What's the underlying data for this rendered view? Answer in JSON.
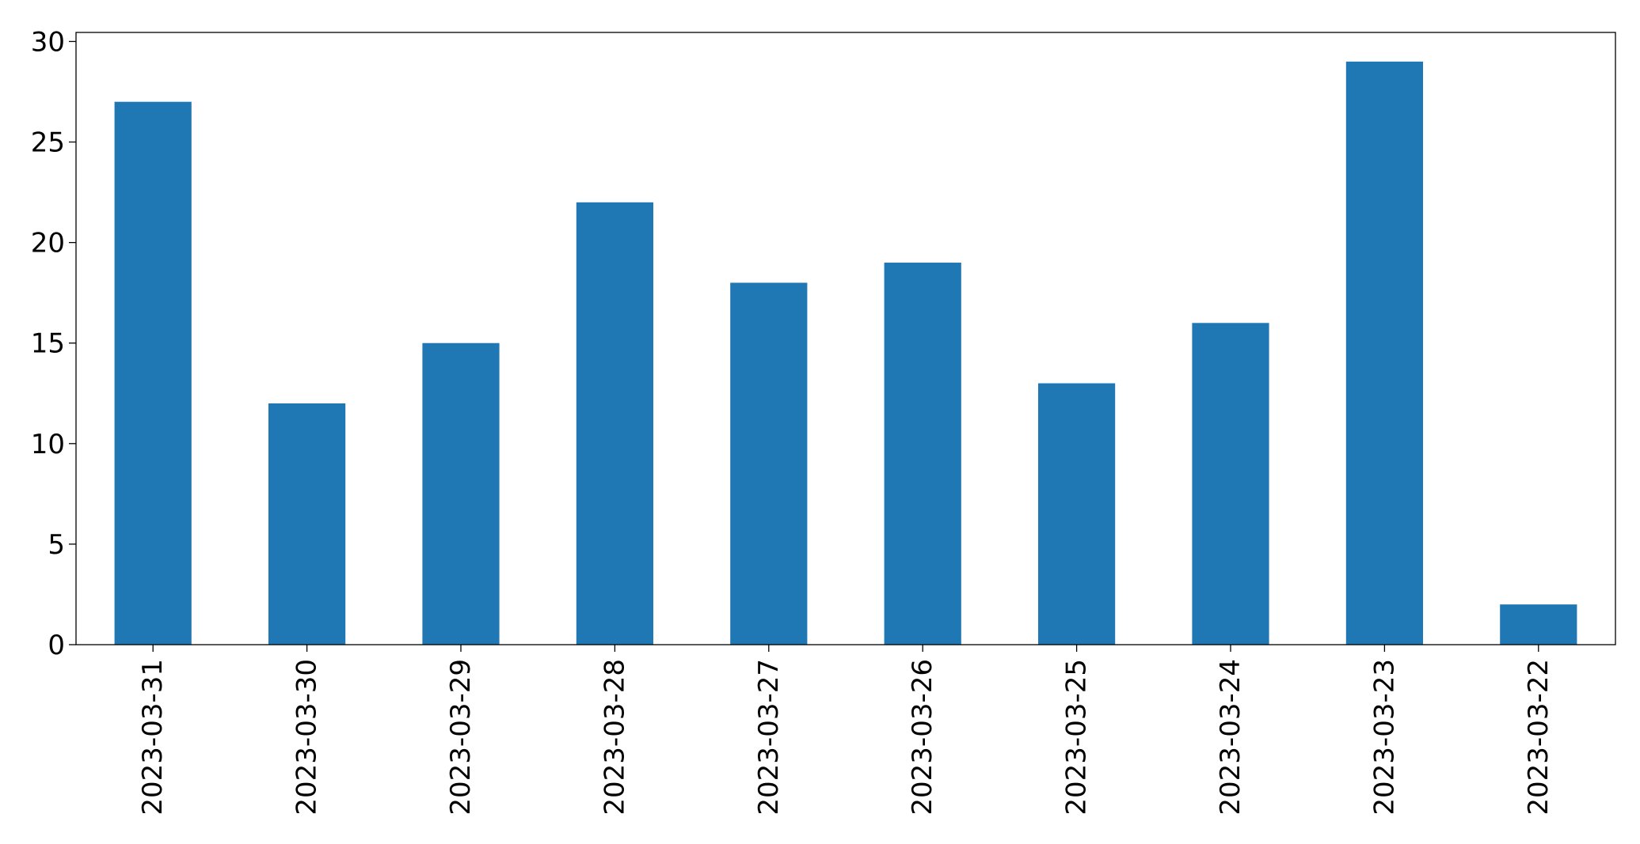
{
  "chart_data": {
    "type": "bar",
    "title": "",
    "xlabel": "",
    "ylabel": "",
    "categories": [
      "2023-03-31",
      "2023-03-30",
      "2023-03-29",
      "2023-03-28",
      "2023-03-27",
      "2023-03-26",
      "2023-03-25",
      "2023-03-24",
      "2023-03-23",
      "2023-03-22"
    ],
    "values": [
      27,
      12,
      15,
      22,
      18,
      19,
      13,
      16,
      29,
      2
    ],
    "ylim": [
      0,
      30.45
    ],
    "yticks": [
      0,
      5,
      10,
      15,
      20,
      25,
      30
    ],
    "grid": false,
    "legend": "none",
    "bar_color": "#1f77b4",
    "xtick_rotation": 90
  }
}
